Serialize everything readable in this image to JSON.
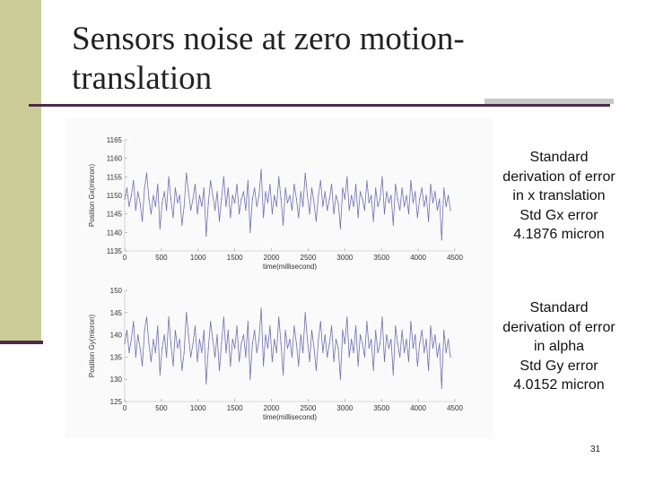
{
  "slide": {
    "title_line1": "Sensors noise at zero motion-",
    "title_line2": "translation",
    "page_number": "31",
    "accent_color": "#cccc99",
    "rule_color": "#4d2a48"
  },
  "stats": {
    "x": {
      "line1": "Standard",
      "line2": "derivation of error",
      "line3": "in x translation",
      "line4": "Std Gx error",
      "line5": "4.1876 micron"
    },
    "alpha": {
      "line1": "Standard",
      "line2": "derivation of error",
      "line3": "in alpha",
      "line4": "Std Gy error",
      "line5": "4.0152 micron"
    }
  },
  "chart_data": [
    {
      "type": "line",
      "xlabel": "time(millisecond)",
      "ylabel": "Position Gx(micron)",
      "xlim": [
        0,
        4500
      ],
      "ylim": [
        1135,
        1165
      ],
      "x_ticks": [
        "0",
        "500",
        "1000",
        "1500",
        "2000",
        "2500",
        "3000",
        "3500",
        "4000",
        "4500"
      ],
      "y_ticks": [
        "1135",
        "1140",
        "1145",
        "1150",
        "1155",
        "1160",
        "1165"
      ],
      "series_color": "#6f6fb8",
      "series": [
        {
          "x": [
            0,
            30,
            60,
            90,
            120,
            150,
            180,
            210,
            240,
            270,
            300,
            330,
            360,
            390,
            420,
            450,
            480,
            510,
            540,
            570,
            600,
            630,
            660,
            690,
            720,
            750,
            780,
            810,
            840,
            870,
            900,
            930,
            960,
            990,
            1020,
            1050,
            1080,
            1110,
            1140,
            1170,
            1200,
            1230,
            1260,
            1290,
            1320,
            1350,
            1380,
            1410,
            1440,
            1470,
            1500,
            1530,
            1560,
            1590,
            1620,
            1650,
            1680,
            1710,
            1740,
            1770,
            1800,
            1830,
            1860,
            1890,
            1920,
            1950,
            1980,
            2010,
            2040,
            2070,
            2100,
            2130,
            2160,
            2190,
            2220,
            2250,
            2280,
            2310,
            2340,
            2370,
            2400,
            2430,
            2460,
            2490,
            2520,
            2550,
            2580,
            2610,
            2640,
            2670,
            2700,
            2730,
            2760,
            2790,
            2820,
            2850,
            2880,
            2910,
            2940,
            2970,
            3000,
            3030,
            3060,
            3090,
            3120,
            3150,
            3180,
            3210,
            3240,
            3270,
            3300,
            3330,
            3360,
            3390,
            3420,
            3450,
            3480,
            3510,
            3540,
            3570,
            3600,
            3630,
            3660,
            3690,
            3720,
            3750,
            3780,
            3810,
            3840,
            3870,
            3900,
            3930,
            3960,
            3990,
            4020,
            4050,
            4080,
            4110,
            4140,
            4170,
            4200,
            4230,
            4260,
            4290,
            4320,
            4350,
            4380,
            4410,
            4440
          ],
          "y": [
            1149,
            1152,
            1147,
            1150,
            1154,
            1146,
            1151,
            1148,
            1143,
            1152,
            1156,
            1149,
            1145,
            1150,
            1147,
            1153,
            1141,
            1148,
            1151,
            1146,
            1155,
            1149,
            1144,
            1152,
            1148,
            1150,
            1142,
            1147,
            1156,
            1151,
            1146,
            1149,
            1153,
            1145,
            1150,
            1147,
            1152,
            1139,
            1148,
            1154,
            1150,
            1146,
            1151,
            1143,
            1149,
            1155,
            1147,
            1152,
            1144,
            1150,
            1148,
            1153,
            1145,
            1149,
            1151,
            1146,
            1154,
            1140,
            1149,
            1152,
            1147,
            1150,
            1157,
            1144,
            1151,
            1148,
            1153,
            1145,
            1150,
            1147,
            1155,
            1149,
            1142,
            1152,
            1148,
            1150,
            1146,
            1153,
            1149,
            1144,
            1151,
            1147,
            1156,
            1150,
            1145,
            1152,
            1148,
            1143,
            1150,
            1154,
            1147,
            1151,
            1146,
            1149,
            1153,
            1145,
            1150,
            1148,
            1141,
            1152,
            1149,
            1155,
            1146,
            1150,
            1147,
            1153,
            1144,
            1151,
            1149,
            1146,
            1154,
            1148,
            1150,
            1143,
            1152,
            1147,
            1149,
            1155,
            1145,
            1151,
            1148,
            1150,
            1142,
            1153,
            1149,
            1146,
            1152,
            1147,
            1150,
            1145,
            1154,
            1148,
            1151,
            1144,
            1149,
            1152,
            1147,
            1150,
            1143,
            1153,
            1148,
            1151,
            1146,
            1149,
            1138,
            1152,
            1147,
            1150,
            1146
          ]
        }
      ]
    },
    {
      "type": "line",
      "xlabel": "time(millisecond)",
      "ylabel": "Position Gy(micron)",
      "xlim": [
        0,
        4500
      ],
      "ylim": [
        125,
        150
      ],
      "x_ticks": [
        "0",
        "500",
        "1000",
        "1500",
        "2000",
        "2500",
        "3000",
        "3500",
        "4000",
        "4500"
      ],
      "y_ticks": [
        "125",
        "130",
        "135",
        "140",
        "145",
        "150"
      ],
      "series_color": "#6f6fb8",
      "series": [
        {
          "x": [
            0,
            30,
            60,
            90,
            120,
            150,
            180,
            210,
            240,
            270,
            300,
            330,
            360,
            390,
            420,
            450,
            480,
            510,
            540,
            570,
            600,
            630,
            660,
            690,
            720,
            750,
            780,
            810,
            840,
            870,
            900,
            930,
            960,
            990,
            1020,
            1050,
            1080,
            1110,
            1140,
            1170,
            1200,
            1230,
            1260,
            1290,
            1320,
            1350,
            1380,
            1410,
            1440,
            1470,
            1500,
            1530,
            1560,
            1590,
            1620,
            1650,
            1680,
            1710,
            1740,
            1770,
            1800,
            1830,
            1860,
            1890,
            1920,
            1950,
            1980,
            2010,
            2040,
            2070,
            2100,
            2130,
            2160,
            2190,
            2220,
            2250,
            2280,
            2310,
            2340,
            2370,
            2400,
            2430,
            2460,
            2490,
            2520,
            2550,
            2580,
            2610,
            2640,
            2670,
            2700,
            2730,
            2760,
            2790,
            2820,
            2850,
            2880,
            2910,
            2940,
            2970,
            3000,
            3030,
            3060,
            3090,
            3120,
            3150,
            3180,
            3210,
            3240,
            3270,
            3300,
            3330,
            3360,
            3390,
            3420,
            3450,
            3480,
            3510,
            3540,
            3570,
            3600,
            3630,
            3660,
            3690,
            3720,
            3750,
            3780,
            3810,
            3840,
            3870,
            3900,
            3930,
            3960,
            3990,
            4020,
            4050,
            4080,
            4110,
            4140,
            4170,
            4200,
            4230,
            4260,
            4290,
            4320,
            4350,
            4380,
            4410,
            4440
          ],
          "y": [
            138,
            141,
            136,
            139,
            143,
            135,
            140,
            137,
            133,
            141,
            144,
            138,
            134,
            139,
            136,
            142,
            131,
            137,
            140,
            135,
            144,
            138,
            133,
            141,
            137,
            139,
            132,
            136,
            145,
            140,
            135,
            138,
            142,
            134,
            139,
            136,
            141,
            129,
            137,
            143,
            139,
            135,
            140,
            132,
            138,
            144,
            136,
            141,
            133,
            139,
            137,
            142,
            134,
            138,
            140,
            135,
            143,
            130,
            138,
            141,
            136,
            139,
            146,
            133,
            140,
            137,
            142,
            134,
            139,
            136,
            144,
            138,
            131,
            141,
            137,
            139,
            135,
            142,
            138,
            133,
            140,
            136,
            145,
            139,
            134,
            141,
            137,
            132,
            139,
            143,
            136,
            140,
            135,
            138,
            142,
            134,
            139,
            137,
            130,
            141,
            138,
            144,
            135,
            139,
            136,
            142,
            133,
            140,
            138,
            135,
            143,
            137,
            139,
            132,
            141,
            136,
            138,
            144,
            134,
            140,
            137,
            139,
            131,
            142,
            138,
            135,
            141,
            136,
            139,
            134,
            143,
            137,
            140,
            133,
            138,
            141,
            136,
            139,
            132,
            142,
            137,
            140,
            135,
            138,
            128,
            141,
            136,
            139,
            135
          ]
        }
      ]
    }
  ]
}
